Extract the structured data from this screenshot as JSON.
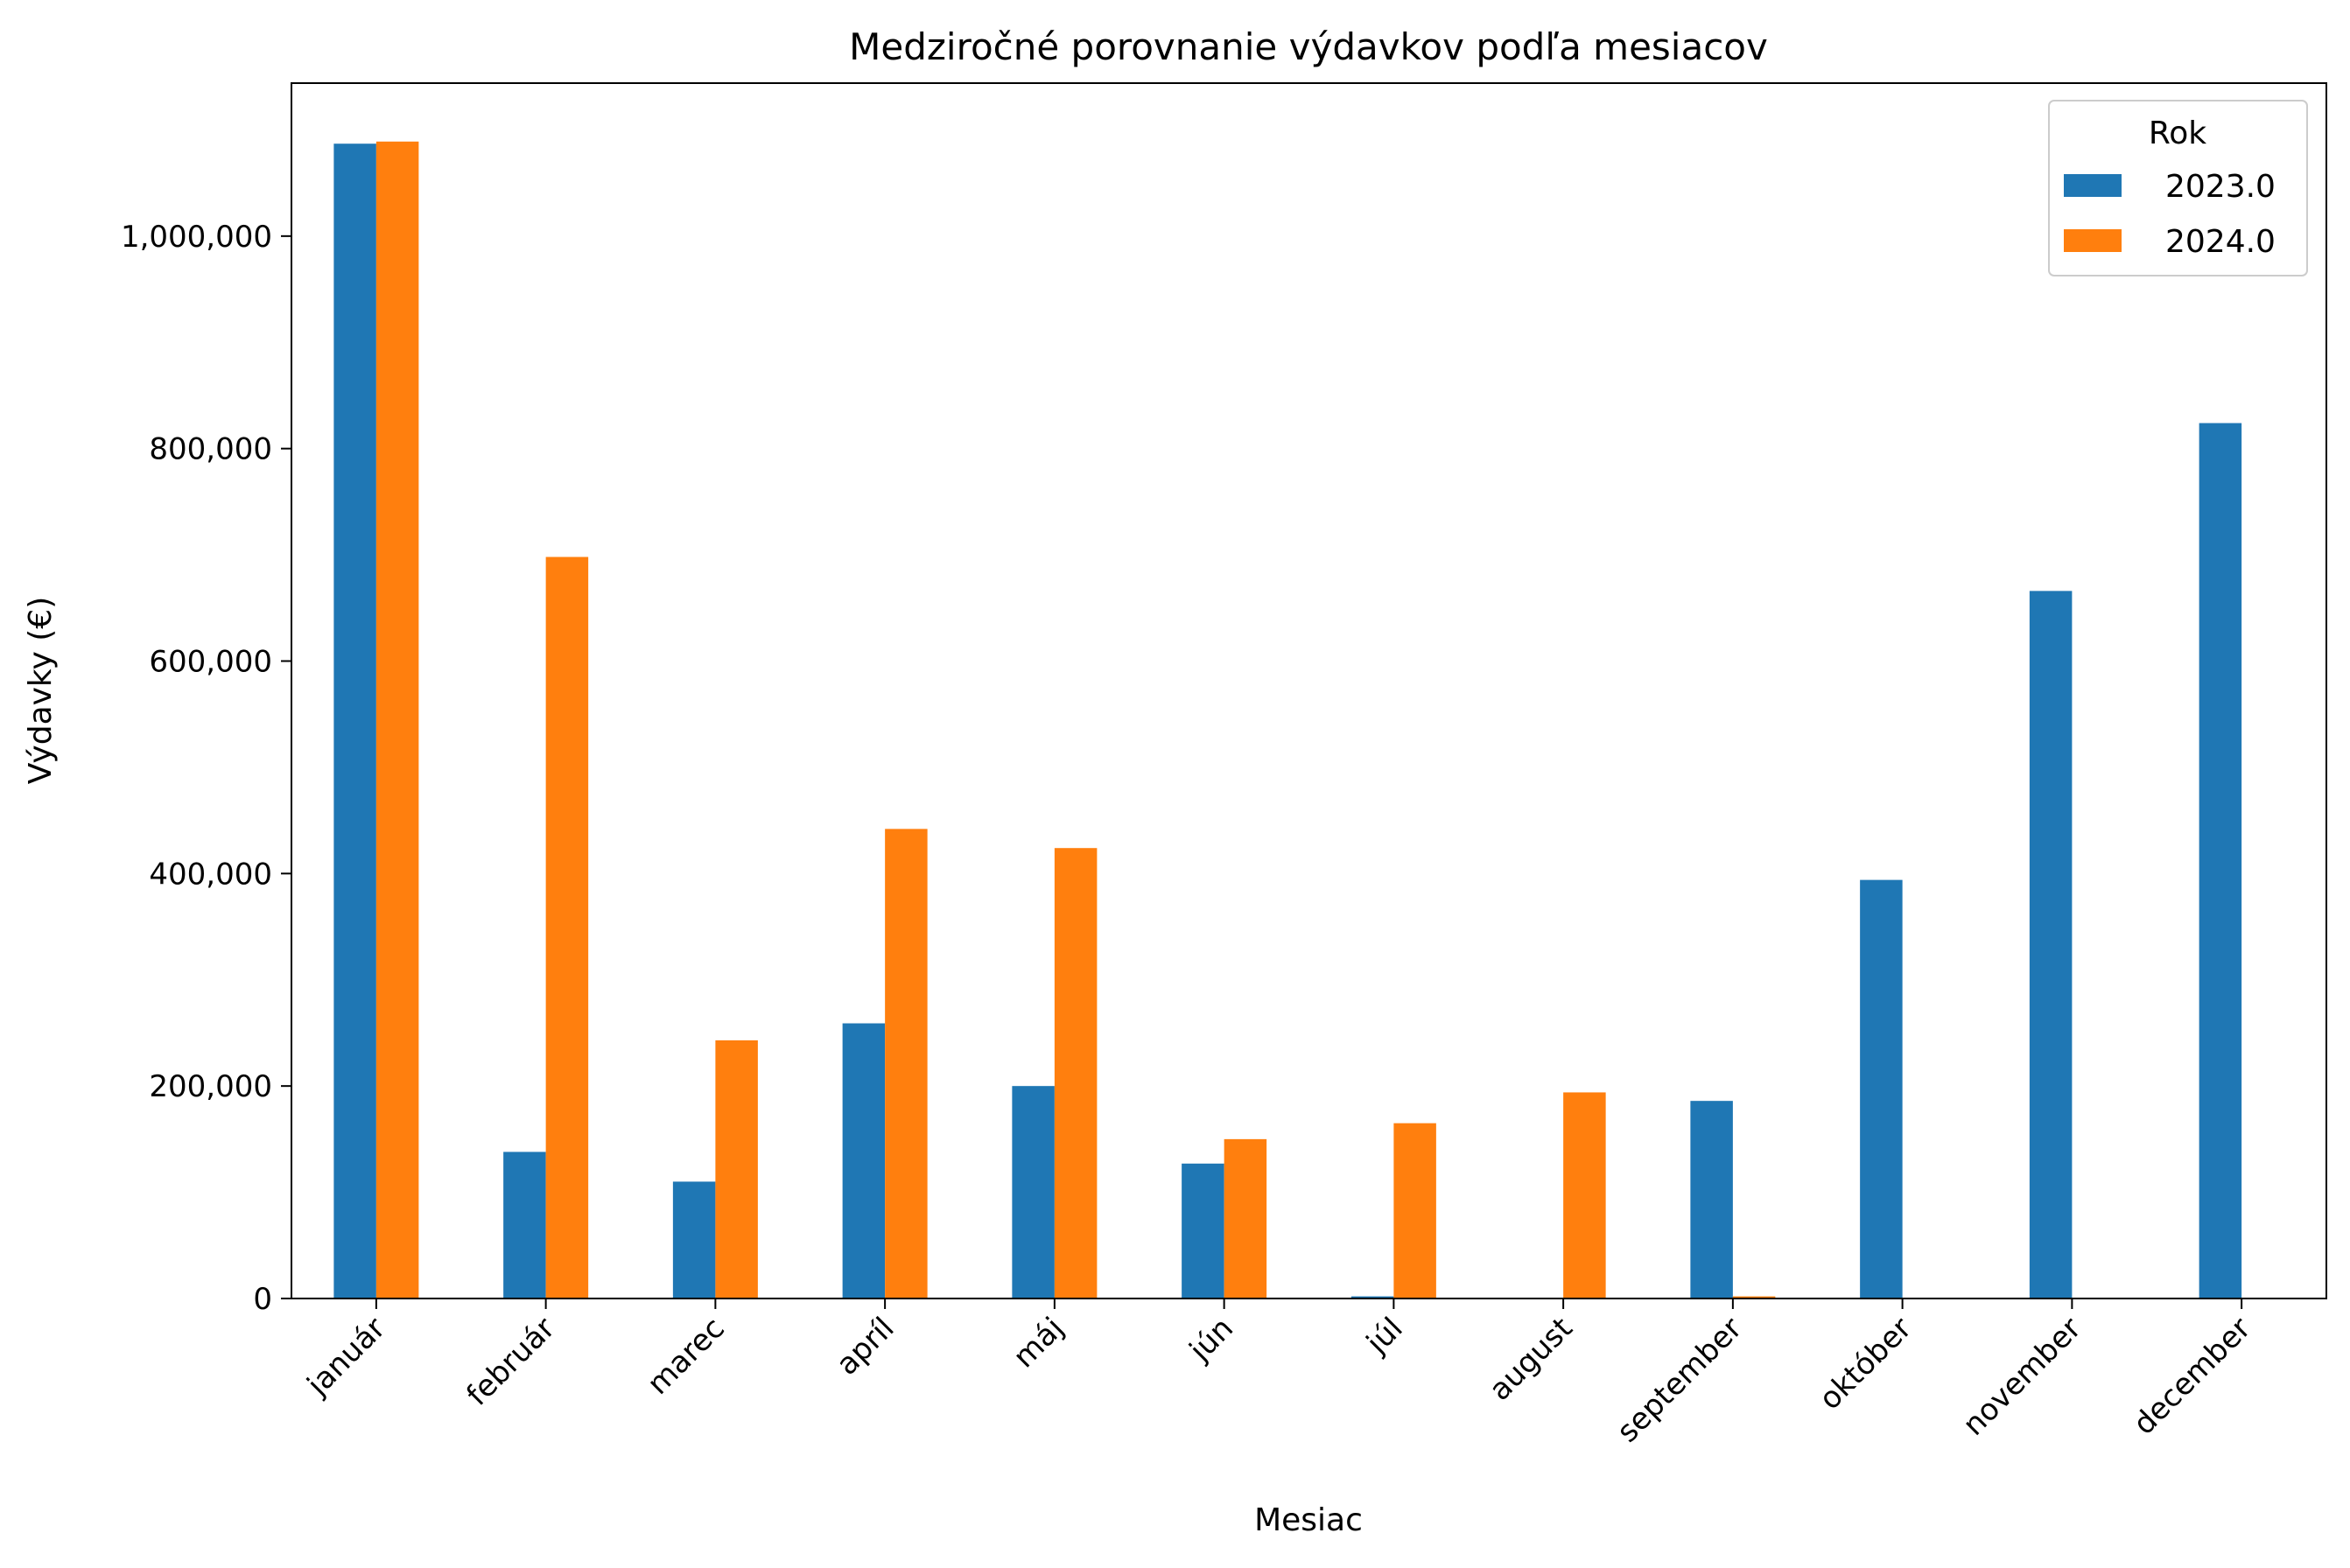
{
  "chart_data": {
    "type": "bar",
    "title": "Medziročné porovnanie výdavkov podľa mesiacov",
    "xlabel": "Mesiac",
    "ylabel": "Výdavky (€)",
    "categories": [
      "január",
      "február",
      "marec",
      "apríl",
      "máj",
      "jún",
      "júl",
      "august",
      "september",
      "október",
      "november",
      "december"
    ],
    "series": [
      {
        "name": "2023.0",
        "color": "#1f77b4",
        "values": [
          1087000,
          138000,
          110000,
          259000,
          200000,
          127000,
          2000,
          0,
          186000,
          394000,
          666000,
          824000
        ]
      },
      {
        "name": "2024.0",
        "color": "#ff7f0e",
        "values": [
          1089000,
          698000,
          243000,
          442000,
          424000,
          150000,
          165000,
          194000,
          2000,
          0,
          0,
          0
        ]
      }
    ],
    "ylim": [
      0,
      1144000
    ],
    "yticks": [
      0,
      200000,
      400000,
      600000,
      800000,
      1000000
    ],
    "ytick_labels": [
      "0",
      "200,000",
      "400,000",
      "600,000",
      "800,000",
      "1,000,000"
    ],
    "legend": {
      "title": "Rok",
      "position": "top-right"
    },
    "grid": false
  }
}
